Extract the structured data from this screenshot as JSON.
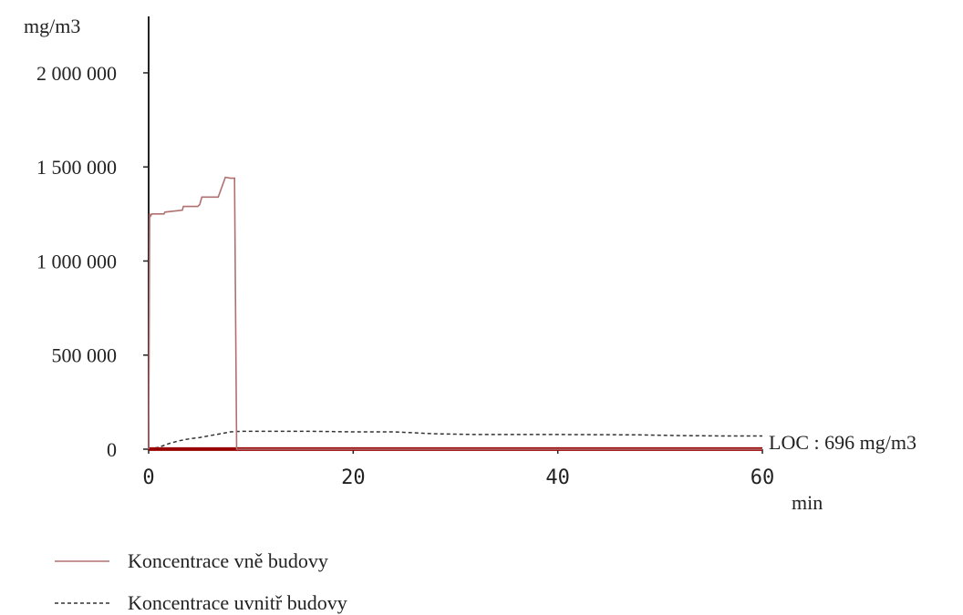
{
  "chart_data": {
    "type": "line",
    "ylabel": "mg/m3",
    "xlabel": "min",
    "xlim": [
      0,
      60
    ],
    "ylim": [
      0,
      2300000
    ],
    "x_ticks": [
      0,
      20,
      40,
      60
    ],
    "x_tick_labels": [
      "0",
      "20",
      "40",
      "60"
    ],
    "y_ticks": [
      0,
      500000,
      1000000,
      1500000,
      2000000
    ],
    "y_tick_labels": [
      "0",
      "500 000",
      "1 000 000",
      "1 500 000",
      "2 000 000"
    ],
    "grid": false,
    "legend_position": "bottom-left",
    "series": [
      {
        "name": "Koncentrace vně budovy",
        "style": "solid",
        "color": "#b07070",
        "x": [
          0,
          0.05,
          0.1,
          0.2,
          0.3,
          1.5,
          1.6,
          3.3,
          3.4,
          4.8,
          5.0,
          5.2,
          6.8,
          7.2,
          7.5,
          8.0,
          8.4,
          8.6,
          60
        ],
        "y": [
          0,
          620000,
          1250000,
          1240000,
          1250000,
          1250000,
          1260000,
          1270000,
          1290000,
          1290000,
          1300000,
          1340000,
          1340000,
          1400000,
          1445000,
          1440000,
          1440000,
          0,
          0
        ]
      },
      {
        "name": "Koncentrace uvnitř budovy",
        "style": "dashed",
        "color": "#333333",
        "x": [
          0,
          1,
          2,
          3,
          4,
          5,
          6,
          7,
          8,
          9,
          12,
          16,
          20,
          24,
          28,
          32,
          40,
          48,
          52,
          56,
          60
        ],
        "y": [
          0,
          10000,
          30000,
          45000,
          55000,
          62000,
          72000,
          82000,
          92000,
          95000,
          95000,
          95000,
          92000,
          92000,
          82000,
          78000,
          78000,
          76000,
          72000,
          70000,
          70000
        ]
      }
    ],
    "loc_line": {
      "y": 696,
      "color": "#990000",
      "label": "LOC : 696 mg/m3"
    }
  },
  "colors": {
    "axis": "#222222",
    "loc": "#990000"
  }
}
